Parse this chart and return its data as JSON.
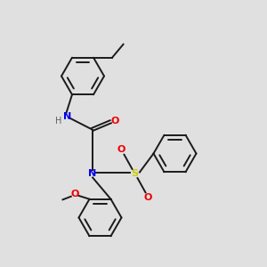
{
  "bg_color": "#e0e0e0",
  "bond_color": "#1a1a1a",
  "N_color": "#0000ee",
  "O_color": "#ee0000",
  "S_color": "#cccc00",
  "H_color": "#606060",
  "lw": 1.4,
  "figsize": [
    3.0,
    3.0
  ],
  "dpi": 100,
  "xlim": [
    0,
    10
  ],
  "ylim": [
    0,
    10
  ]
}
